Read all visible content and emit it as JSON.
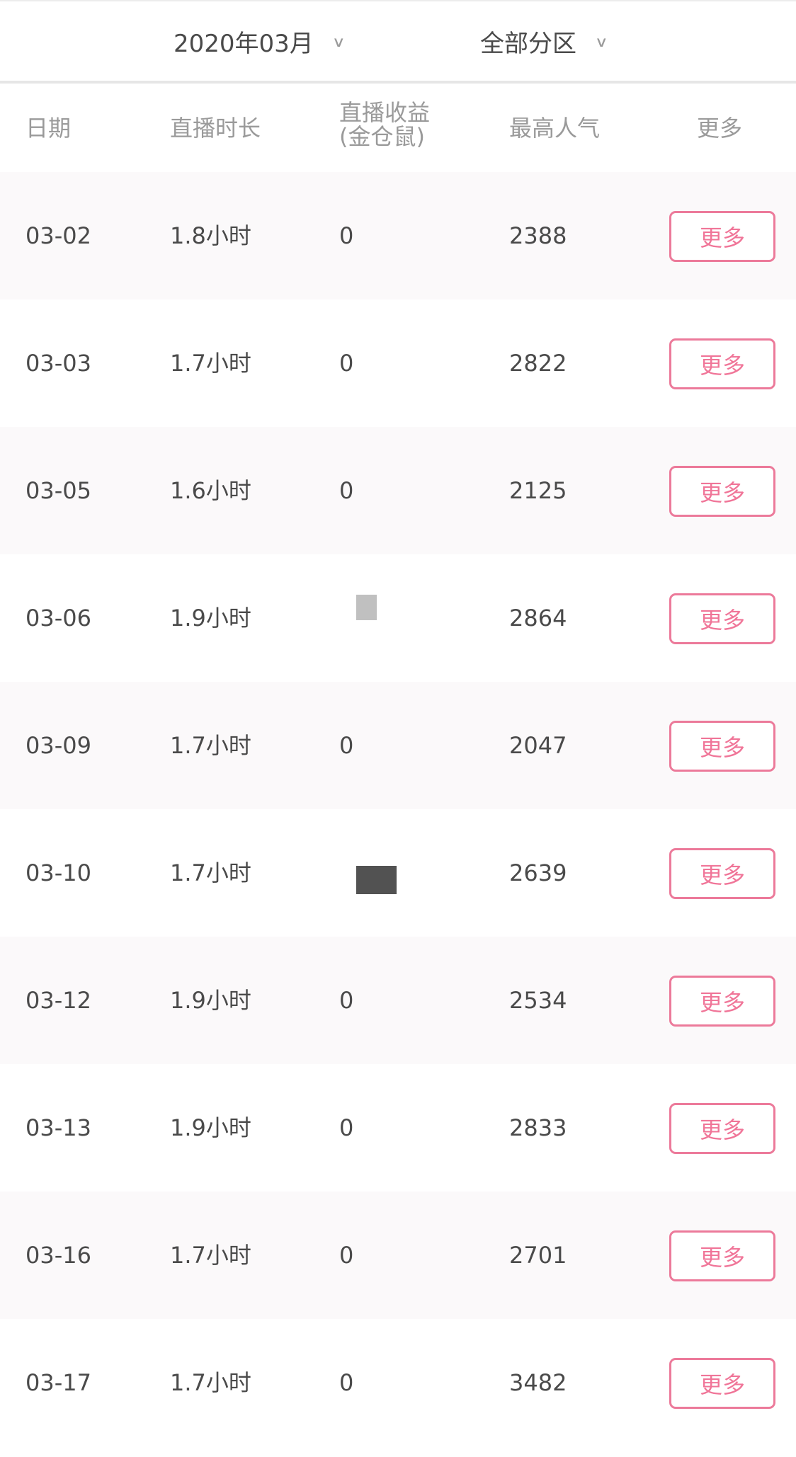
{
  "filters": {
    "month": "2020年03月",
    "area": "全部分区",
    "chevron_icon": "chevron-down-icon"
  },
  "table": {
    "headers": {
      "date": "日期",
      "duration": "直播时长",
      "revenue_line1": "直播收益",
      "revenue_line2": "(金仓鼠)",
      "popularity": "最高人气",
      "more": "更多"
    },
    "rows": [
      {
        "date": "03-02",
        "duration": "1.8小时",
        "revenue": "0",
        "popularity": "2388",
        "more": "更多"
      },
      {
        "date": "03-03",
        "duration": "1.7小时",
        "revenue": "0",
        "popularity": "2822",
        "more": "更多"
      },
      {
        "date": "03-05",
        "duration": "1.6小时",
        "revenue": "0",
        "popularity": "2125",
        "more": "更多"
      },
      {
        "date": "03-06",
        "duration": "1.9小时",
        "revenue": null,
        "popularity": "2864",
        "more": "更多"
      },
      {
        "date": "03-09",
        "duration": "1.7小时",
        "revenue": "0",
        "popularity": "2047",
        "more": "更多"
      },
      {
        "date": "03-10",
        "duration": "1.7小时",
        "revenue": null,
        "popularity": "2639",
        "more": "更多"
      },
      {
        "date": "03-12",
        "duration": "1.9小时",
        "revenue": "0",
        "popularity": "2534",
        "more": "更多"
      },
      {
        "date": "03-13",
        "duration": "1.9小时",
        "revenue": "0",
        "popularity": "2833",
        "more": "更多"
      },
      {
        "date": "03-16",
        "duration": "1.7小时",
        "revenue": "0",
        "popularity": "2701",
        "more": "更多"
      },
      {
        "date": "03-17",
        "duration": "1.7小时",
        "revenue": "0",
        "popularity": "3482",
        "more": "更多"
      }
    ]
  },
  "colors": {
    "accent": "#ec7a9a",
    "alt_row": "#fbf9fa",
    "text": "#4a4a4a",
    "header_text": "#9a9a9a"
  }
}
